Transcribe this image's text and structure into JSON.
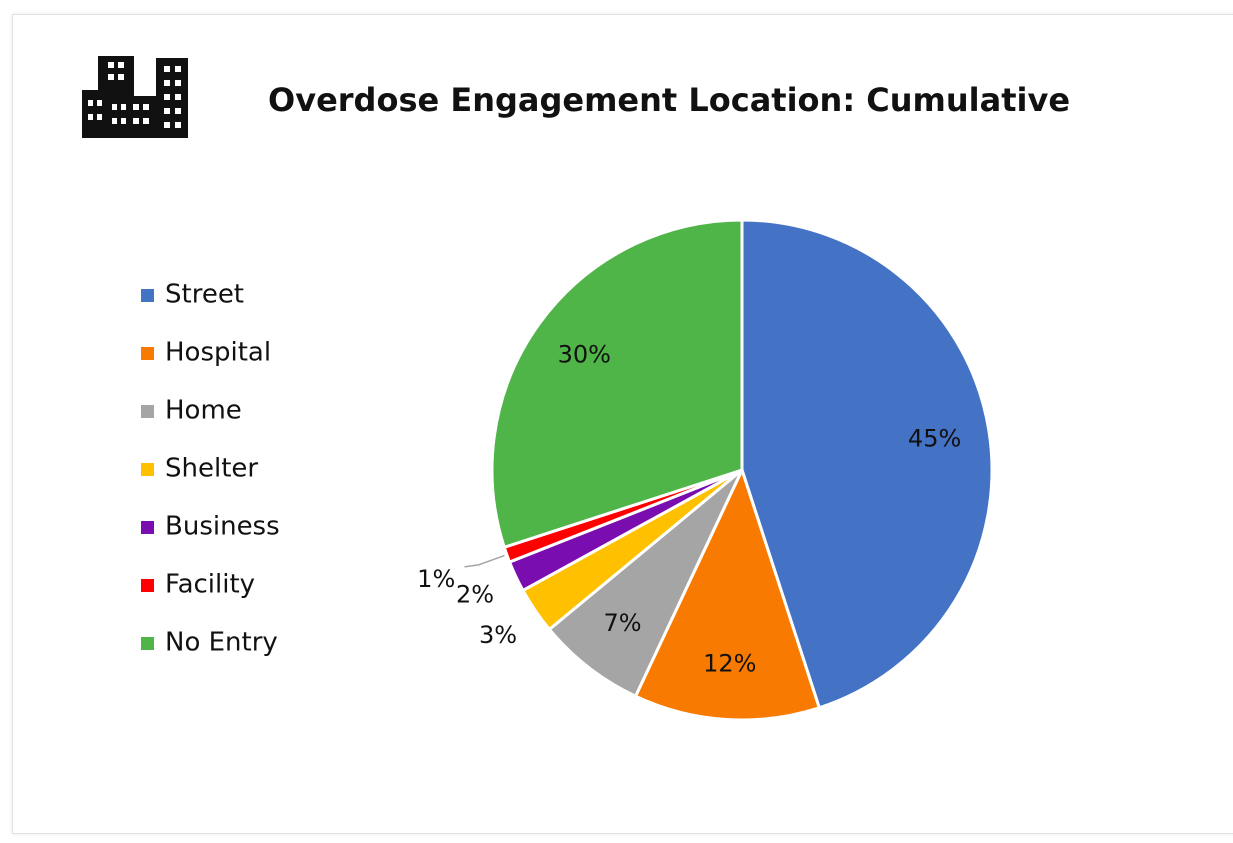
{
  "chart_data": {
    "type": "pie",
    "title": "Overdose Engagement Location: Cumulative",
    "categories": [
      "Street",
      "Hospital",
      "Home",
      "Shelter",
      "Business",
      "Facility",
      "No Entry"
    ],
    "values": [
      45,
      12,
      7,
      3,
      2,
      1,
      30
    ],
    "value_labels": [
      "45%",
      "12%",
      "7%",
      "3%",
      "2%",
      "1%",
      "30%"
    ],
    "colors": [
      "#4472c4",
      "#f97a00",
      "#a5a5a5",
      "#ffc000",
      "#7a0db0",
      "#ff0000",
      "#50b548"
    ],
    "legend": "left"
  }
}
